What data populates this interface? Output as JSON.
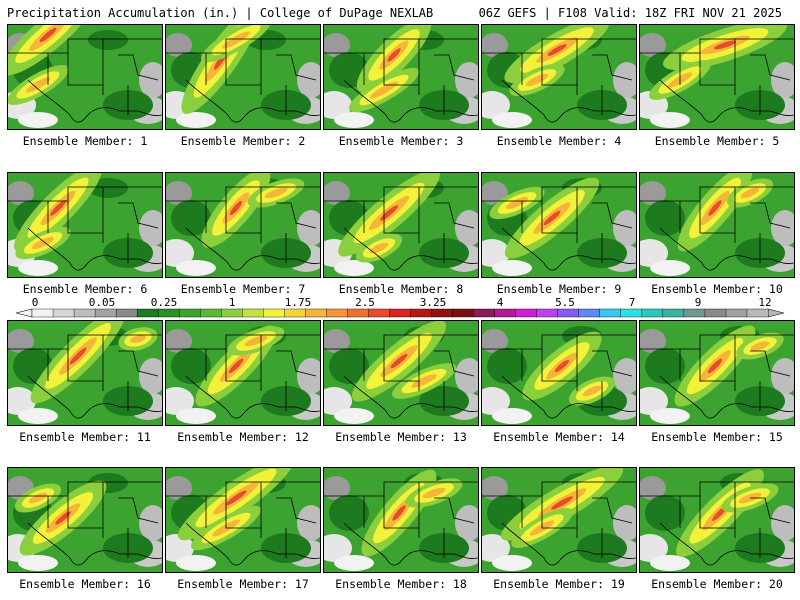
{
  "header": {
    "title_left": "Precipitation Accumulation (in.) | College of DuPage NEXLAB",
    "title_right": "06Z GEFS | F108 Valid: 18Z FRI NOV 21 2025"
  },
  "panels": [
    {
      "label": "Ensemble Member: 1"
    },
    {
      "label": "Ensemble Member: 2"
    },
    {
      "label": "Ensemble Member: 3"
    },
    {
      "label": "Ensemble Member: 4"
    },
    {
      "label": "Ensemble Member: 5"
    },
    {
      "label": "Ensemble Member: 6"
    },
    {
      "label": "Ensemble Member: 7"
    },
    {
      "label": "Ensemble Member: 8"
    },
    {
      "label": "Ensemble Member: 9"
    },
    {
      "label": "Ensemble Member: 10"
    },
    {
      "label": "Ensemble Member: 11"
    },
    {
      "label": "Ensemble Member: 12"
    },
    {
      "label": "Ensemble Member: 13"
    },
    {
      "label": "Ensemble Member: 14"
    },
    {
      "label": "Ensemble Member: 15"
    },
    {
      "label": "Ensemble Member: 16"
    },
    {
      "label": "Ensemble Member: 17"
    },
    {
      "label": "Ensemble Member: 18"
    },
    {
      "label": "Ensemble Member: 19"
    },
    {
      "label": "Ensemble Member: 20"
    }
  ],
  "colorbar": {
    "tick_labels": [
      "0",
      "0.05",
      "0.25",
      "1",
      "1.75",
      "2.5",
      "3.25",
      "4",
      "5.5",
      "7",
      "9",
      "12"
    ],
    "colors": [
      "#f2f2f2",
      "#d6d6d6",
      "#bdbdbd",
      "#a3a3a3",
      "#8a8a8a",
      "#1e7a1e",
      "#2a8f26",
      "#3ca331",
      "#5cb83a",
      "#8ccf3c",
      "#c6e23e",
      "#f2f23a",
      "#f5d43a",
      "#f5b53a",
      "#f5963a",
      "#f0702e",
      "#e84a2a",
      "#d82424",
      "#b81616",
      "#931010",
      "#7a1010",
      "#8a1a5a",
      "#b01a96",
      "#d21ed2",
      "#c040f0",
      "#8a5af2",
      "#5a8af2",
      "#36c8f2",
      "#2ae2e2",
      "#2ac8b8",
      "#36b4a0",
      "#709890",
      "#8a8a8a",
      "#a0a0a0",
      "#b8b8b8"
    ]
  }
}
